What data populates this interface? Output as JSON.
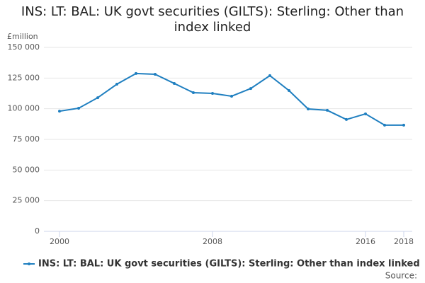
{
  "chart_data": {
    "type": "line",
    "title": "INS: LT: BAL: UK govt securities (GILTS): Sterling: Other than index linked",
    "y_label": "£million",
    "source": "Source:",
    "x": [
      2000,
      2001,
      2002,
      2003,
      2004,
      2005,
      2006,
      2007,
      2008,
      2009,
      2010,
      2011,
      2012,
      2013,
      2014,
      2015,
      2016,
      2017,
      2018
    ],
    "series": [
      {
        "name": "INS: LT: BAL: UK govt securities (GILTS): Sterling: Other than index linked",
        "color": "#1f7fc0",
        "values": [
          98000,
          100400,
          109000,
          120000,
          128700,
          128100,
          120600,
          113100,
          112500,
          110200,
          116500,
          127000,
          114800,
          99800,
          98700,
          91200,
          95800,
          86600,
          86600
        ]
      }
    ],
    "xlim": [
      2000,
      2018
    ],
    "xticks": [
      2000,
      2008,
      2016,
      2018
    ],
    "ylim": [
      0,
      150000
    ],
    "yticks": [
      0,
      {
        "value": 25000,
        "label": "25 000"
      },
      {
        "value": 50000,
        "label": "50 000"
      },
      {
        "value": 75000,
        "label": "75 000"
      },
      {
        "value": 100000,
        "label": "100 000"
      },
      {
        "value": 125000,
        "label": "125 000"
      },
      {
        "value": 150000,
        "label": "150 000"
      }
    ],
    "grid": true
  }
}
